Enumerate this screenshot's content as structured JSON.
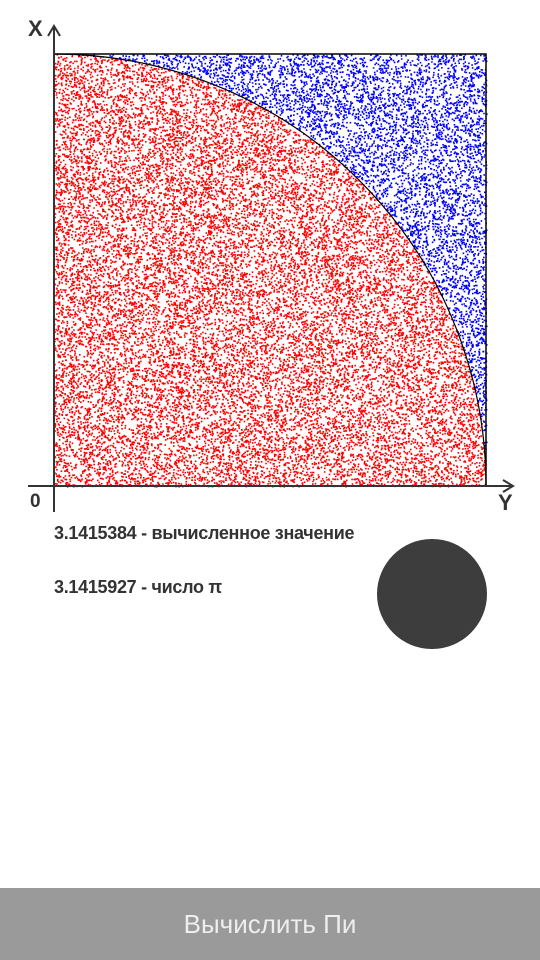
{
  "axes": {
    "x_label": "X",
    "y_label": "Y",
    "origin_label": "0"
  },
  "simulation": {
    "inside_color": "#ff0000",
    "outside_color": "#0000ff",
    "boundary_color": "#000000",
    "boundary_shape": "quarter-circle"
  },
  "results": {
    "computed_value": "3.1415384",
    "computed_text": " - вычисленное значение",
    "pi_value": "3.1415927",
    "pi_text": " - число π"
  },
  "indicator": {
    "color": "#3c3d3c"
  },
  "button": {
    "label": "Вычислить Пи"
  }
}
